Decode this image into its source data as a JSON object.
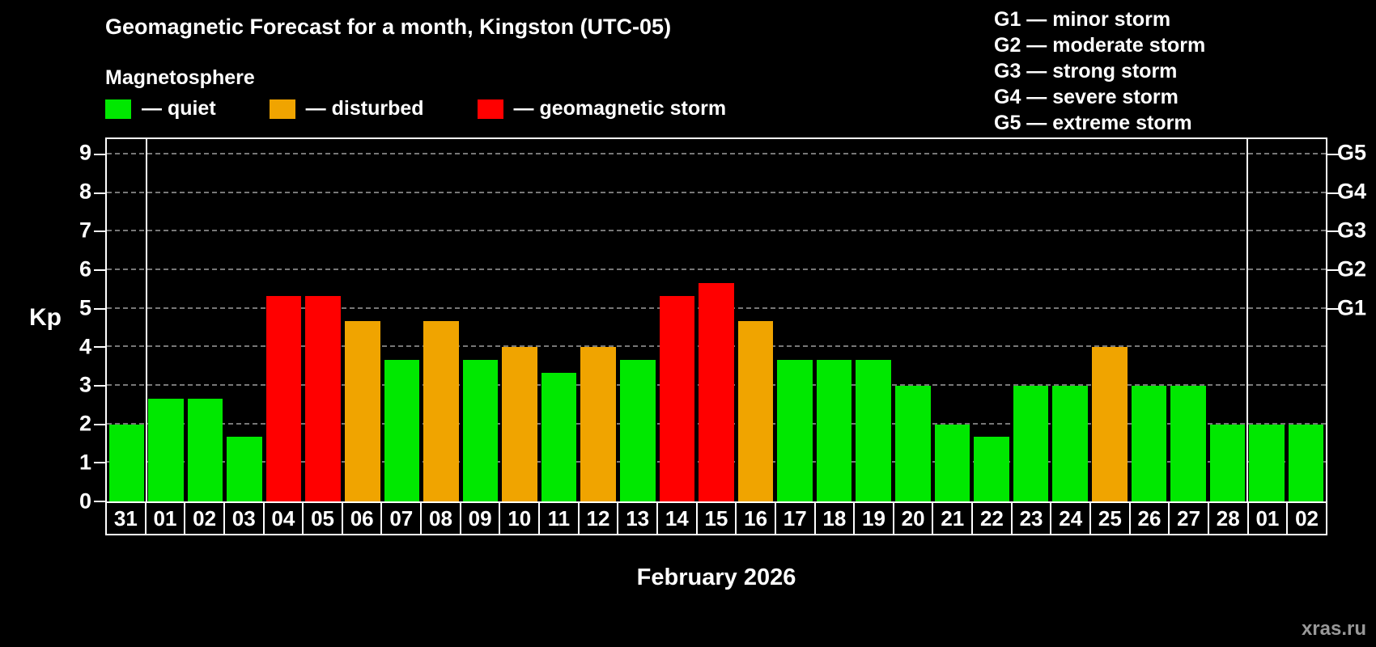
{
  "header": {
    "title": "Geomagnetic Forecast for a month, Kingston (UTC-05)",
    "subtitle": "Magnetosphere"
  },
  "legend": [
    {
      "key": "quiet",
      "label": "— quiet"
    },
    {
      "key": "disturbed",
      "label": "— disturbed"
    },
    {
      "key": "storm",
      "label": "— geomagnetic storm"
    }
  ],
  "storm_scale": [
    "G1 — minor storm",
    "G2 — moderate storm",
    "G3 — strong storm",
    "G4 — severe storm",
    "G5 — extreme storm"
  ],
  "chart_data": {
    "type": "bar",
    "title": "Geomagnetic Forecast for a month, Kingston (UTC-05)",
    "ylabel": "Kp",
    "xlabel": "February 2026",
    "ylim": [
      0,
      9.4
    ],
    "yticks": [
      0,
      1,
      2,
      3,
      4,
      5,
      6,
      7,
      8,
      9
    ],
    "grid": "dashed horizontal at each Kp integer",
    "legend_position": "top-left",
    "right_axis_labels": [
      {
        "label": "G1",
        "kp": 5
      },
      {
        "label": "G2",
        "kp": 6
      },
      {
        "label": "G3",
        "kp": 7
      },
      {
        "label": "G4",
        "kp": 8
      },
      {
        "label": "G5",
        "kp": 9
      }
    ],
    "categories": [
      "31",
      "01",
      "02",
      "03",
      "04",
      "05",
      "06",
      "07",
      "08",
      "09",
      "10",
      "11",
      "12",
      "13",
      "14",
      "15",
      "16",
      "17",
      "18",
      "19",
      "20",
      "21",
      "22",
      "23",
      "24",
      "25",
      "26",
      "27",
      "28",
      "01",
      "02"
    ],
    "values": [
      2.0,
      2.67,
      2.67,
      1.67,
      5.33,
      5.33,
      4.67,
      3.67,
      4.67,
      3.67,
      4.0,
      3.33,
      4.0,
      3.67,
      5.33,
      5.67,
      4.67,
      3.67,
      3.67,
      3.67,
      3.0,
      2.0,
      1.67,
      3.0,
      3.0,
      4.0,
      3.0,
      3.0,
      2.0,
      2.0,
      2.0
    ],
    "states": [
      "quiet",
      "quiet",
      "quiet",
      "quiet",
      "storm",
      "storm",
      "disturbed",
      "quiet",
      "disturbed",
      "quiet",
      "disturbed",
      "quiet",
      "disturbed",
      "quiet",
      "storm",
      "storm",
      "disturbed",
      "quiet",
      "quiet",
      "quiet",
      "quiet",
      "quiet",
      "quiet",
      "quiet",
      "quiet",
      "disturbed",
      "quiet",
      "quiet",
      "quiet",
      "quiet",
      "quiet"
    ],
    "colors": {
      "quiet": "#00e800",
      "disturbed": "#f0a400",
      "storm": "#ff0000"
    },
    "month_boundaries_after": [
      1,
      29
    ]
  },
  "footer": {
    "month_label": "February 2026",
    "watermark": "xras.ru"
  }
}
